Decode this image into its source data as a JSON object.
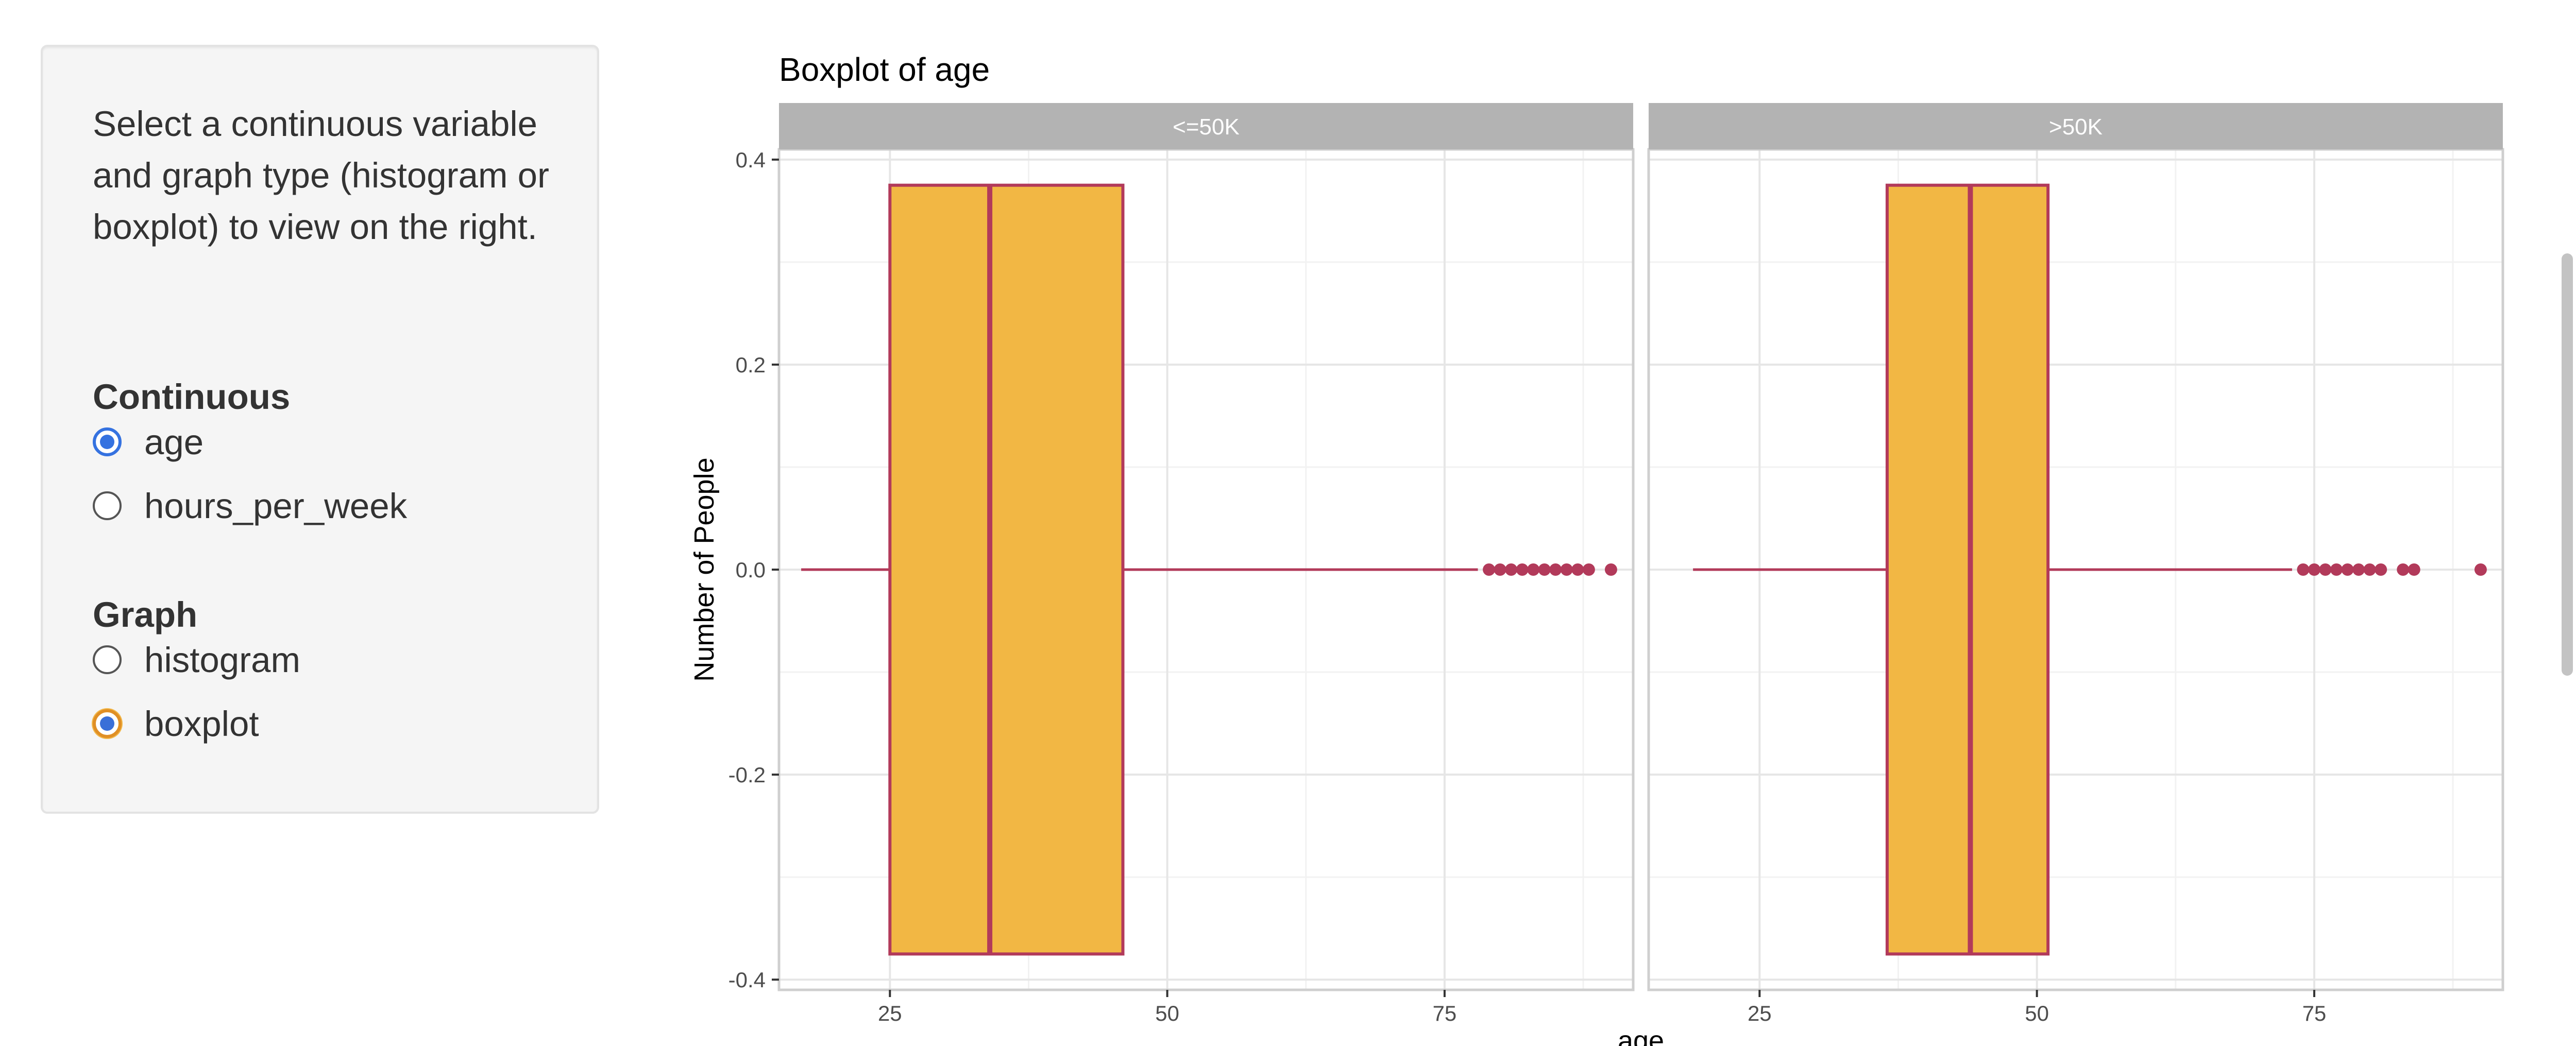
{
  "sidebar": {
    "help_text": "Select a continuous variable and graph type (histogram or boxplot) to view on the right.",
    "continuous": {
      "label": "Continuous",
      "options": [
        {
          "label": "age",
          "checked": true
        },
        {
          "label": "hours_per_week",
          "checked": false
        }
      ]
    },
    "graph": {
      "label": "Graph",
      "options": [
        {
          "label": "histogram",
          "checked": false
        },
        {
          "label": "boxplot",
          "checked": true
        }
      ]
    }
  },
  "colors": {
    "box_fill": "#f2b744",
    "box_line": "#b23a5a",
    "strip_bg": "#b3b3b3",
    "strip_text": "#ffffff",
    "grid_major": "#e6e6e6",
    "grid_minor": "#f2f2f2",
    "axis_text": "#4d4d4d",
    "radio_accent": "#3572e0"
  },
  "chart_data": {
    "type": "boxplot",
    "title": "Boxplot of age",
    "xlabel": "age",
    "ylabel": "Number of People",
    "xlim": [
      15,
      92
    ],
    "ylim": [
      -0.41,
      0.41
    ],
    "x_ticks": [
      25,
      50,
      75
    ],
    "y_ticks": [
      -0.4,
      -0.2,
      0.0,
      0.2,
      0.4
    ],
    "y_tick_labels": [
      "-0.4",
      "-0.2",
      "0.0",
      "0.2",
      "0.4"
    ],
    "grid": true,
    "facets": [
      {
        "name": "<=50K",
        "whisker_low": 17,
        "q1": 25,
        "median": 34,
        "q3": 46,
        "whisker_high": 78,
        "box_half_height": 0.375,
        "outliers": [
          79,
          80,
          81,
          82,
          83,
          84,
          85,
          86,
          87,
          88,
          90
        ]
      },
      {
        "name": ">50K",
        "whisker_low": 19,
        "q1": 36.5,
        "median": 44,
        "q3": 51,
        "whisker_high": 73,
        "box_half_height": 0.375,
        "outliers": [
          74,
          75,
          76,
          77,
          78,
          79,
          80,
          81,
          83,
          84,
          90
        ]
      }
    ]
  }
}
